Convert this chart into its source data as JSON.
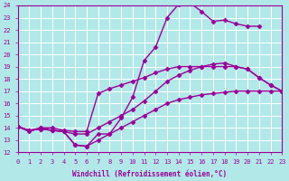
{
  "xlabel": "Windchill (Refroidissement éolien,°C)",
  "xlim": [
    0,
    23
  ],
  "ylim": [
    12,
    24
  ],
  "xtick_labels": [
    "0",
    "1",
    "2",
    "3",
    "4",
    "5",
    "6",
    "7",
    "8",
    "9",
    "10",
    "11",
    "12",
    "13",
    "14",
    "15",
    "16",
    "17",
    "18",
    "19",
    "20",
    "21",
    "22",
    "23"
  ],
  "ytick_labels": [
    "12",
    "13",
    "14",
    "15",
    "16",
    "17",
    "18",
    "19",
    "20",
    "21",
    "22",
    "23",
    "24"
  ],
  "background_color": "#b2e8e8",
  "grid_color": "#ffffff",
  "line_color": "#990099",
  "line_width": 1.0,
  "marker": "D",
  "marker_size": 2.5,
  "line1_x": [
    0,
    1,
    2,
    3,
    4,
    5,
    6,
    7,
    8,
    9,
    10,
    11,
    12,
    13,
    14,
    15,
    16,
    17,
    18,
    19,
    20,
    21
  ],
  "line1_y": [
    14.1,
    13.7,
    14.0,
    13.8,
    13.7,
    12.6,
    12.5,
    13.5,
    13.5,
    14.8,
    16.5,
    19.5,
    20.6,
    23.0,
    24.1,
    24.2,
    23.5,
    22.7,
    22.8,
    22.5,
    22.3,
    22.3
  ],
  "line2_x": [
    0,
    1,
    2,
    3,
    4,
    5,
    6,
    7,
    8,
    9,
    10,
    11,
    12,
    13,
    14,
    15,
    16,
    17,
    18,
    19,
    20,
    21,
    22,
    23
  ],
  "line2_y": [
    14.1,
    13.8,
    13.9,
    13.8,
    13.7,
    13.5,
    13.5,
    14.0,
    14.5,
    15.0,
    15.5,
    16.2,
    17.0,
    17.8,
    18.3,
    18.7,
    19.0,
    19.2,
    19.3,
    19.0,
    18.8,
    18.1,
    17.5,
    17.0
  ],
  "line3_x": [
    0,
    1,
    2,
    3,
    4,
    5,
    6,
    7,
    8,
    9,
    10,
    11,
    12,
    13,
    14,
    15,
    16,
    17,
    18,
    19,
    20,
    21,
    22,
    23
  ],
  "line3_y": [
    14.1,
    13.8,
    13.9,
    13.8,
    13.7,
    12.6,
    12.5,
    13.0,
    13.5,
    14.0,
    14.5,
    15.0,
    15.5,
    16.0,
    16.3,
    16.5,
    16.7,
    16.8,
    16.9,
    17.0,
    17.0,
    17.0,
    17.0,
    17.0
  ],
  "line4_x": [
    0,
    1,
    2,
    3,
    4,
    5,
    6,
    7,
    8,
    9,
    10,
    11,
    12,
    13,
    14,
    15,
    16,
    17,
    18,
    19,
    20,
    21,
    22,
    23
  ],
  "line4_y": [
    14.1,
    13.8,
    14.0,
    14.0,
    13.8,
    13.7,
    13.7,
    16.8,
    17.2,
    17.5,
    17.8,
    18.1,
    18.5,
    18.8,
    19.0,
    19.0,
    19.0,
    19.0,
    19.0,
    19.0,
    18.8,
    18.1,
    17.5,
    17.0
  ]
}
